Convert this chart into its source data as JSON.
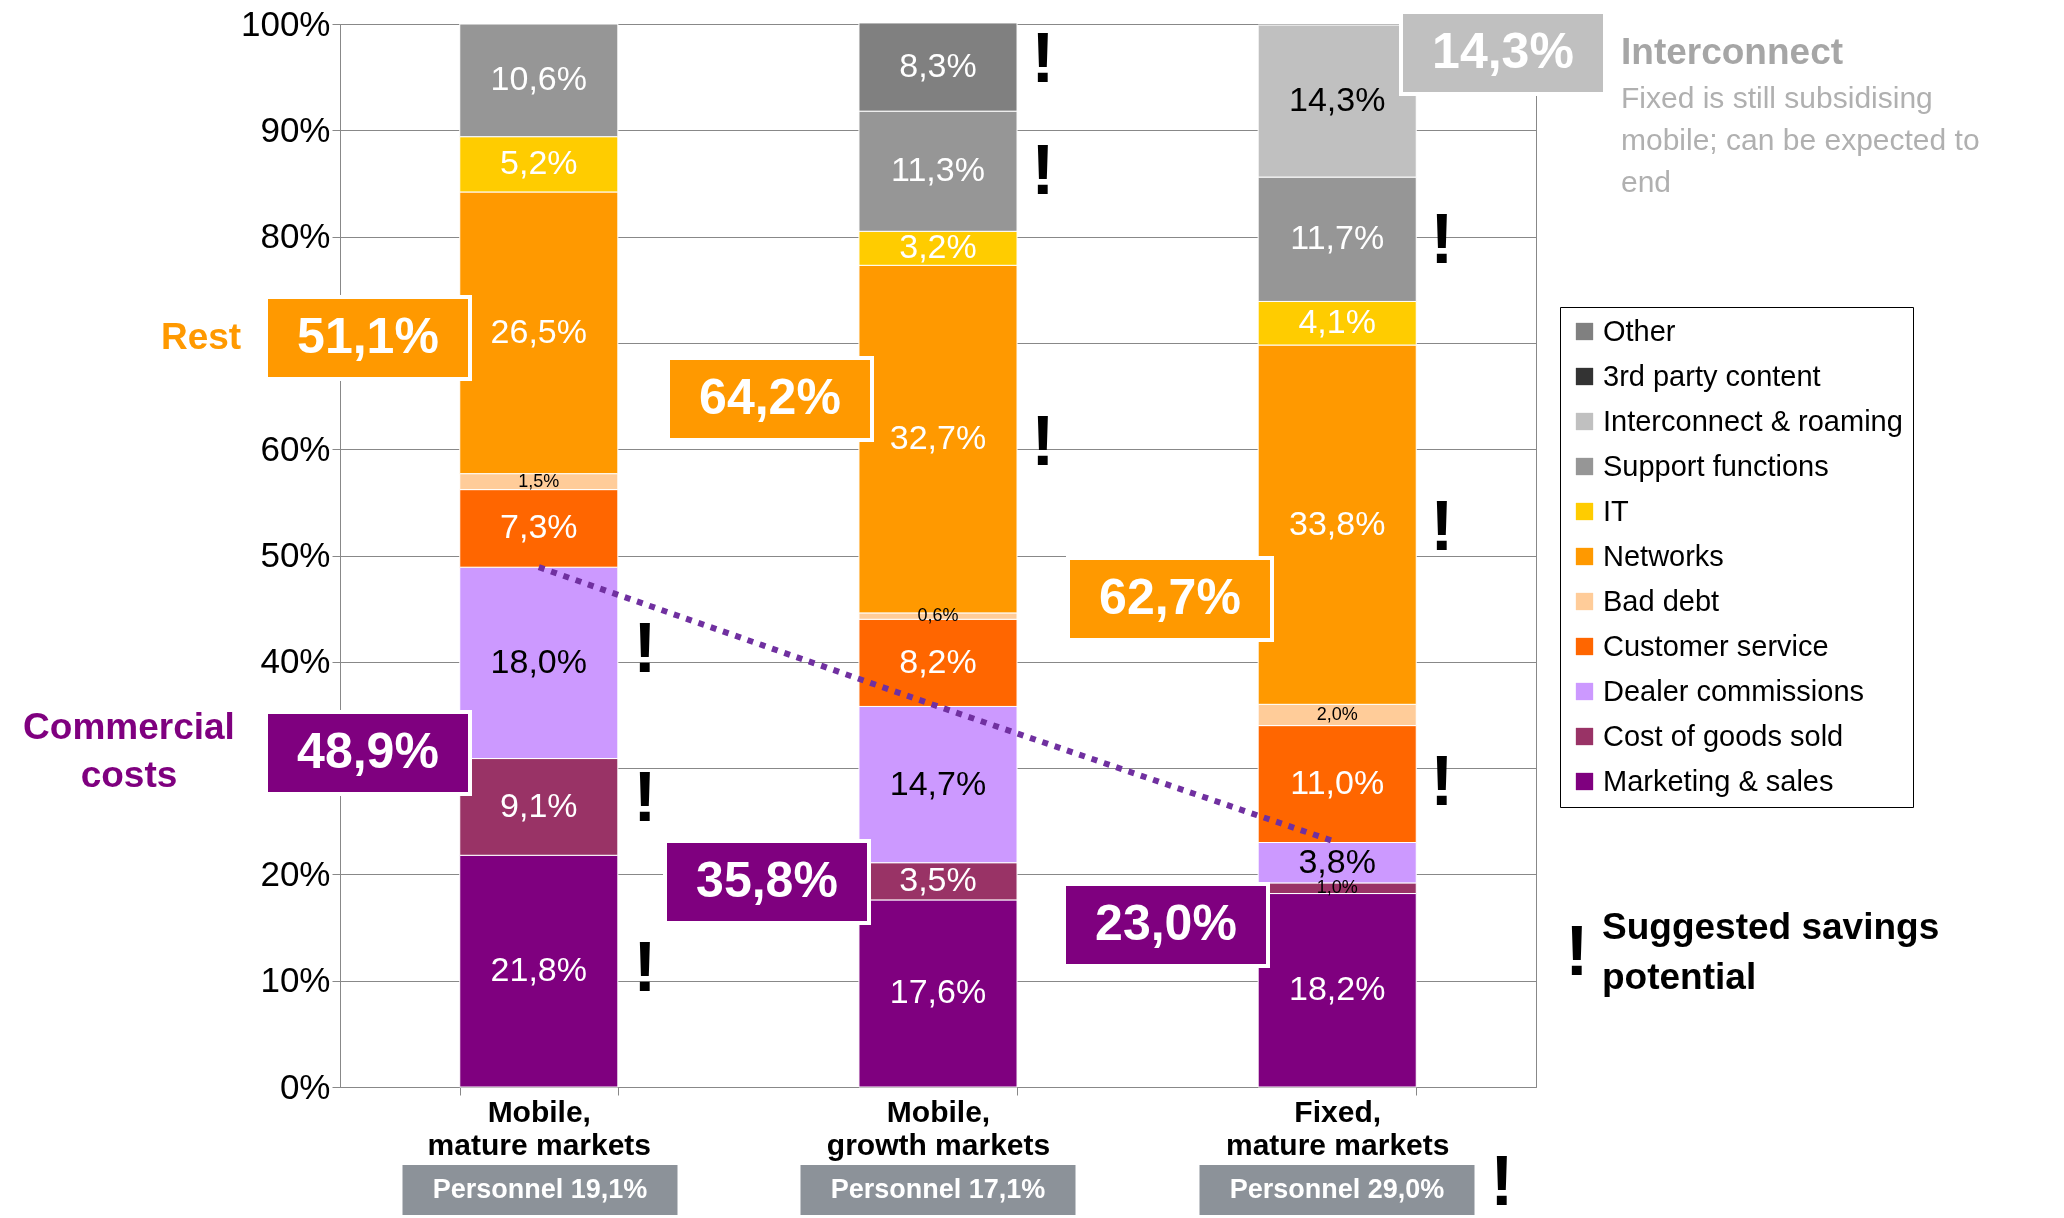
{
  "chart_data": {
    "type": "bar",
    "stacked": true,
    "categories": [
      "Mobile, mature markets",
      "Mobile, growth markets",
      "Fixed, mature markets"
    ],
    "series": [
      {
        "name": "Marketing & sales",
        "color": "#7f007f",
        "values": [
          21.8,
          17.6,
          18.2
        ],
        "value_labels": [
          "21,8%",
          "17,6%",
          "18,2%"
        ]
      },
      {
        "name": "Cost of goods sold",
        "color": "#993366",
        "values": [
          9.1,
          3.5,
          1.0
        ],
        "value_labels": [
          "9,1%",
          "3,5%",
          "1,0%"
        ]
      },
      {
        "name": "Dealer commissions",
        "color": "#cc99ff",
        "values": [
          18.0,
          14.7,
          3.8
        ],
        "value_labels": [
          "18,0%",
          "14,7%",
          "3,8%"
        ]
      },
      {
        "name": "Customer service",
        "color": "#ff6600",
        "values": [
          7.3,
          8.2,
          11.0
        ],
        "value_labels": [
          "7,3%",
          "8,2%",
          "11,0%"
        ]
      },
      {
        "name": "Bad debt",
        "color": "#ffcc99",
        "values": [
          1.5,
          0.6,
          2.0
        ],
        "value_labels": [
          "1,5%",
          "0,6%",
          "2,0%"
        ]
      },
      {
        "name": "Networks",
        "color": "#ff9900",
        "values": [
          26.5,
          32.7,
          33.8
        ],
        "value_labels": [
          "26,5%",
          "32,7%",
          "33,8%"
        ]
      },
      {
        "name": "IT",
        "color": "#ffcc00",
        "values": [
          5.2,
          3.2,
          4.1
        ],
        "value_labels": [
          "5,2%",
          "3,2%",
          "4,1%"
        ]
      },
      {
        "name": "Support functions",
        "color": "#969696",
        "values": [
          10.6,
          11.3,
          11.7
        ],
        "value_labels": [
          "10,6%",
          "11,3%",
          "11,7%"
        ]
      },
      {
        "name": "Interconnect & roaming",
        "color": "#c0c0c0",
        "values": [
          null,
          null,
          14.3
        ],
        "value_labels": [
          null,
          null,
          "14,3%"
        ]
      },
      {
        "name": "3rd party content",
        "color": "#333333",
        "values": [
          null,
          null,
          null
        ]
      },
      {
        "name": "Other",
        "color": "#808080",
        "values": [
          null,
          8.3,
          null
        ],
        "value_labels": [
          null,
          "8,3%",
          null
        ]
      },
      {
        "type": "line",
        "color": "#7030a0",
        "line_style": "dotted",
        "marker": "none",
        "values": [
          48.9,
          35.8,
          23.0
        ]
      }
    ],
    "ylim": [
      0,
      100
    ],
    "yticks": [
      {
        "value": 0,
        "label": "0%"
      },
      {
        "value": 10,
        "label": "10%"
      },
      {
        "value": 20,
        "label": "20%"
      },
      {
        "value": 30,
        "label": null
      },
      {
        "value": 40,
        "label": "40%"
      },
      {
        "value": 50,
        "label": "50%"
      },
      {
        "value": 60,
        "label": "60%"
      },
      {
        "value": 70,
        "label": null
      },
      {
        "value": 80,
        "label": "80%"
      },
      {
        "value": 90,
        "label": "90%"
      },
      {
        "value": 100,
        "label": "100%"
      }
    ],
    "grid": "y",
    "legend": "right",
    "annotations": [
      "Rest",
      "51,1%",
      "64,2%",
      "62,7%",
      "Commercial costs",
      "48,9%",
      "35,8%",
      "23,0%",
      "14,3%",
      "Interconnect",
      "Fixed is still subsidising mobile; can be expected to end",
      "!",
      "Suggested savings potential",
      "Personnel 19,1%",
      "Personnel 17,1%",
      "Personnel 29,0%",
      "!",
      "!",
      "!",
      "!",
      "!",
      "!",
      "!",
      "!",
      "!",
      "!"
    ]
  }
}
